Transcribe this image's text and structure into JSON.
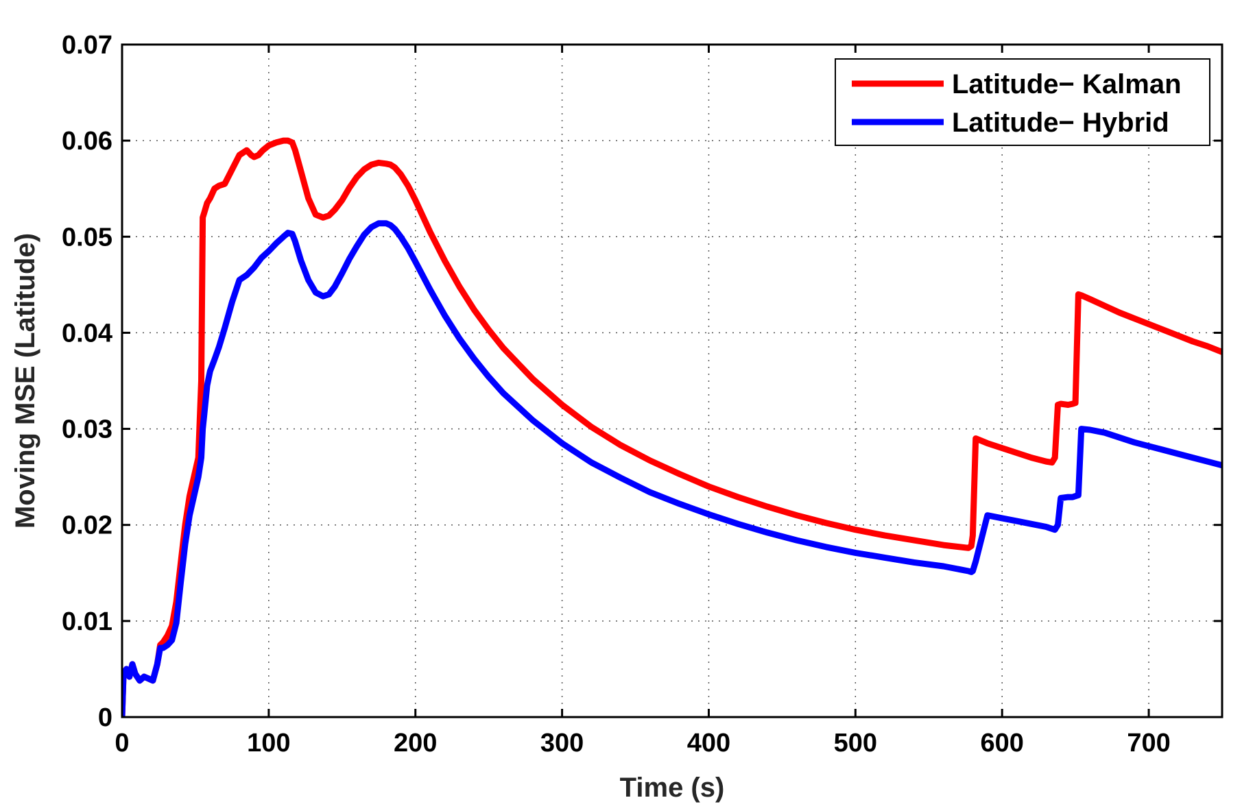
{
  "chart_data": {
    "type": "line",
    "title": "",
    "xlabel": "Time (s)",
    "ylabel": "Moving MSE (Latitude)",
    "xlim": [
      0,
      750
    ],
    "ylim": [
      0,
      0.07
    ],
    "grid": true,
    "legend_position": "top-right",
    "x_ticks": [
      0,
      100,
      200,
      300,
      400,
      500,
      600,
      700
    ],
    "x_tick_labels": [
      "0",
      "100",
      "200",
      "300",
      "400",
      "500",
      "600",
      "700"
    ],
    "y_ticks": [
      0,
      0.01,
      0.02,
      0.03,
      0.04,
      0.05,
      0.06,
      0.07
    ],
    "y_tick_labels": [
      "0",
      "0.01",
      "0.02",
      "0.03",
      "0.04",
      "0.05",
      "0.06",
      "0.07"
    ],
    "series": [
      {
        "name": "Latitude− Kalman",
        "color": "#ff0000",
        "x": [
          0,
          1,
          3,
          5,
          7,
          9,
          12,
          15,
          18,
          21,
          24,
          26,
          28,
          31,
          34,
          37,
          40,
          43,
          46,
          49,
          52,
          54,
          55,
          56,
          58,
          60,
          63,
          66,
          70,
          75,
          80,
          85,
          88,
          90,
          93,
          96,
          100,
          105,
          110,
          113,
          116,
          118,
          122,
          127,
          132,
          137,
          141,
          145,
          150,
          155,
          160,
          165,
          170,
          175,
          180,
          183,
          186,
          190,
          195,
          200,
          210,
          220,
          230,
          240,
          250,
          260,
          280,
          300,
          320,
          340,
          360,
          380,
          400,
          420,
          440,
          460,
          480,
          500,
          520,
          540,
          560,
          577,
          579,
          580,
          582,
          590,
          600,
          610,
          620,
          630,
          634,
          636,
          638,
          640,
          645,
          648,
          650,
          652,
          654,
          660,
          670,
          680,
          690,
          700,
          710,
          720,
          730,
          740,
          750
        ],
        "y": [
          0,
          0.0045,
          0.005,
          0.0042,
          0.0055,
          0.0045,
          0.0038,
          0.0042,
          0.004,
          0.0038,
          0.0055,
          0.0075,
          0.0078,
          0.0085,
          0.0095,
          0.012,
          0.016,
          0.02,
          0.023,
          0.025,
          0.027,
          0.035,
          0.052,
          0.0525,
          0.0535,
          0.054,
          0.055,
          0.0553,
          0.0555,
          0.057,
          0.0585,
          0.059,
          0.0585,
          0.0583,
          0.0585,
          0.059,
          0.0595,
          0.0598,
          0.06,
          0.06,
          0.0598,
          0.059,
          0.0568,
          0.054,
          0.0523,
          0.052,
          0.0522,
          0.0528,
          0.0538,
          0.0551,
          0.0562,
          0.057,
          0.0575,
          0.0577,
          0.0576,
          0.0575,
          0.0572,
          0.0565,
          0.0553,
          0.0538,
          0.0505,
          0.0475,
          0.0448,
          0.0424,
          0.0403,
          0.0384,
          0.0352,
          0.0325,
          0.0302,
          0.0283,
          0.0267,
          0.0253,
          0.024,
          0.0229,
          0.0219,
          0.021,
          0.0202,
          0.0195,
          0.0189,
          0.0184,
          0.0179,
          0.0176,
          0.0178,
          0.0189,
          0.029,
          0.0285,
          0.028,
          0.0275,
          0.027,
          0.0266,
          0.0265,
          0.027,
          0.0325,
          0.0326,
          0.0325,
          0.0326,
          0.0327,
          0.044,
          0.0439,
          0.0435,
          0.0428,
          0.0421,
          0.0415,
          0.0409,
          0.0403,
          0.0397,
          0.0391,
          0.0386,
          0.038
        ]
      },
      {
        "name": "Latitude− Hybrid",
        "color": "#0000ff",
        "x": [
          0,
          1,
          3,
          5,
          7,
          9,
          12,
          15,
          18,
          21,
          24,
          26,
          28,
          31,
          34,
          37,
          40,
          43,
          46,
          49,
          52,
          54,
          55,
          56,
          58,
          60,
          63,
          66,
          70,
          75,
          80,
          85,
          90,
          95,
          100,
          105,
          110,
          113,
          116,
          118,
          122,
          127,
          132,
          137,
          141,
          145,
          150,
          155,
          160,
          165,
          170,
          175,
          180,
          183,
          186,
          190,
          195,
          200,
          210,
          220,
          230,
          240,
          250,
          260,
          280,
          300,
          320,
          340,
          360,
          380,
          400,
          420,
          440,
          460,
          480,
          500,
          520,
          540,
          560,
          577,
          579,
          580,
          582,
          590,
          600,
          610,
          620,
          630,
          634,
          636,
          638,
          640,
          645,
          648,
          650,
          652,
          654,
          660,
          670,
          680,
          690,
          700,
          710,
          720,
          730,
          740,
          750
        ],
        "y": [
          0,
          0.0045,
          0.005,
          0.0042,
          0.0055,
          0.0045,
          0.0038,
          0.0042,
          0.004,
          0.0038,
          0.0055,
          0.0072,
          0.0072,
          0.0075,
          0.008,
          0.0098,
          0.014,
          0.018,
          0.021,
          0.023,
          0.025,
          0.027,
          0.03,
          0.0315,
          0.0345,
          0.036,
          0.0372,
          0.0385,
          0.0405,
          0.0432,
          0.0455,
          0.046,
          0.0468,
          0.0478,
          0.0485,
          0.0493,
          0.05,
          0.0504,
          0.0503,
          0.0495,
          0.0475,
          0.0455,
          0.0442,
          0.0438,
          0.044,
          0.0448,
          0.0462,
          0.0477,
          0.049,
          0.0502,
          0.051,
          0.0514,
          0.0514,
          0.0512,
          0.0508,
          0.05,
          0.0488,
          0.0474,
          0.0445,
          0.0418,
          0.0394,
          0.0373,
          0.0354,
          0.0337,
          0.0309,
          0.0285,
          0.0265,
          0.0249,
          0.0234,
          0.0222,
          0.0211,
          0.0201,
          0.0192,
          0.0184,
          0.0177,
          0.0171,
          0.0166,
          0.0161,
          0.0157,
          0.0152,
          0.0151,
          0.0152,
          0.0162,
          0.021,
          0.0207,
          0.0204,
          0.0201,
          0.0198,
          0.0196,
          0.0195,
          0.02,
          0.0228,
          0.0229,
          0.0229,
          0.023,
          0.0231,
          0.03,
          0.0299,
          0.0296,
          0.0291,
          0.0286,
          0.0282,
          0.0278,
          0.0274,
          0.027,
          0.0266,
          0.0262
        ]
      }
    ]
  }
}
